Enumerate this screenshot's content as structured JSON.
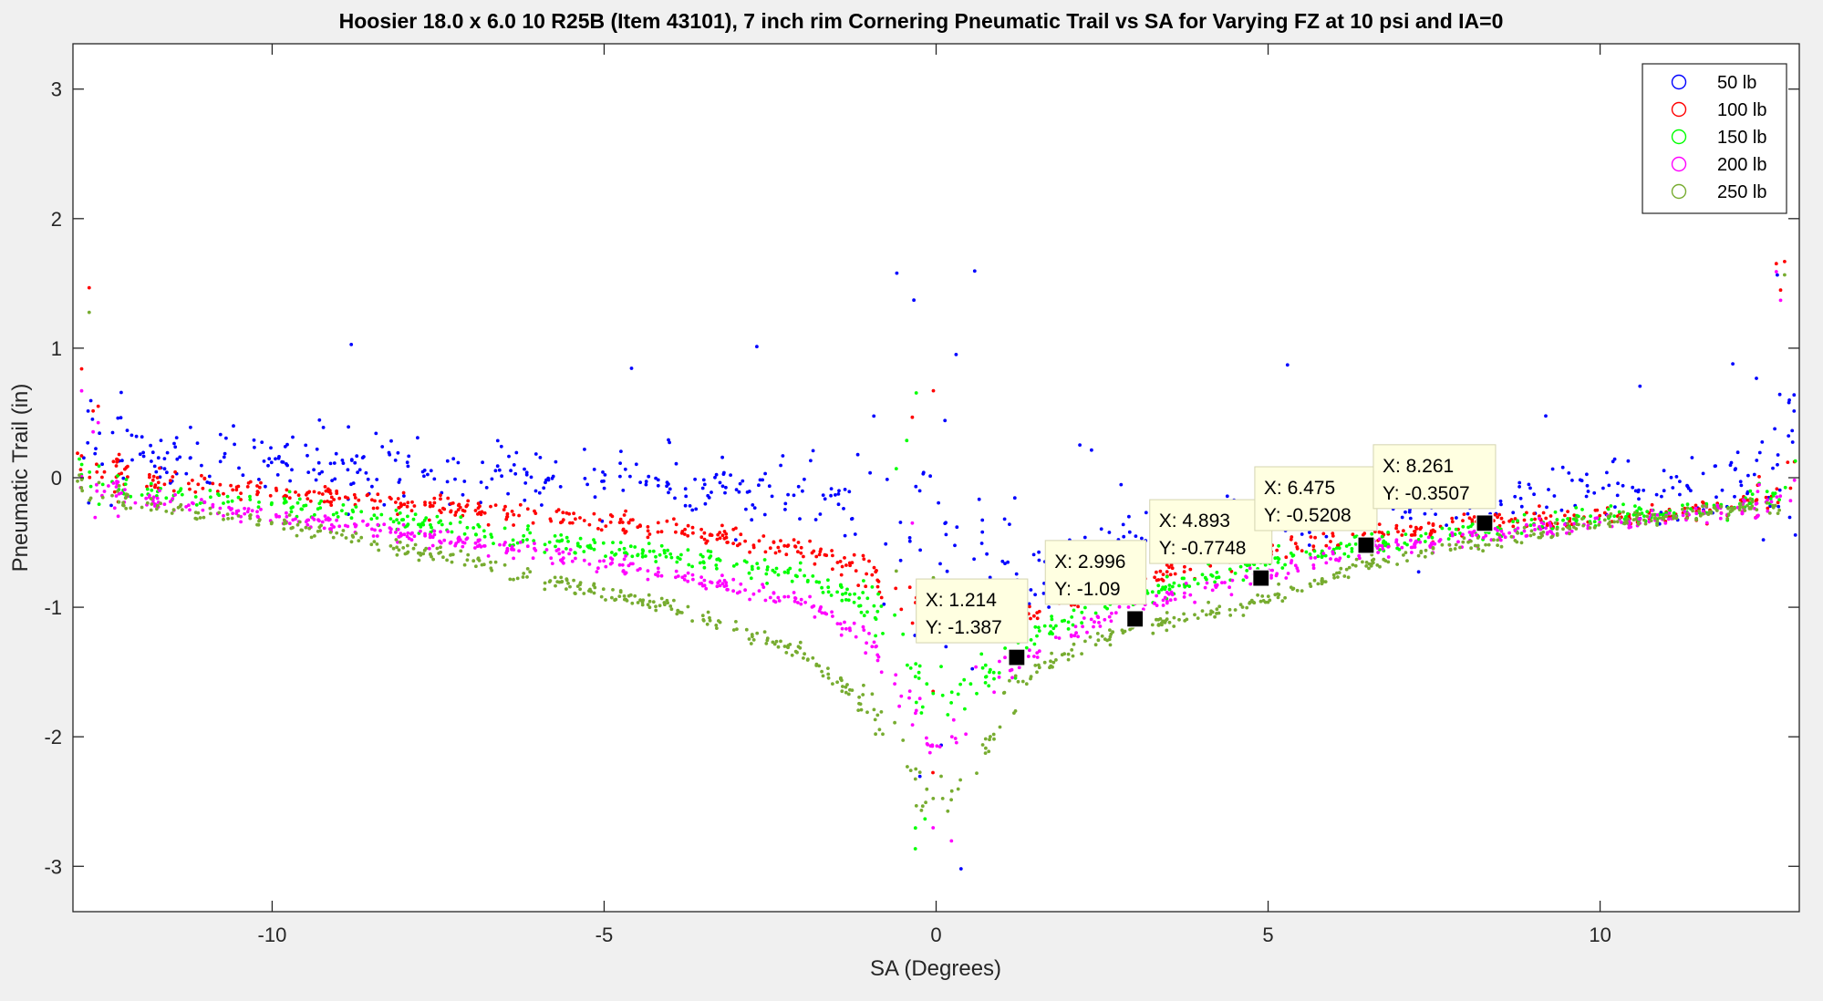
{
  "chart_data": {
    "type": "scatter",
    "title": "Hoosier 18.0 x 6.0 10 R25B (Item 43101), 7 inch rim Cornering Pneumatic Trail vs SA for Varying FZ at 10 psi and IA=0",
    "xlabel": "SA (Degrees)",
    "ylabel": "Pneumatic Trail (in)",
    "xlim": [
      -13,
      13
    ],
    "ylim": [
      -3.35,
      3.35
    ],
    "xticks": [
      -10,
      -5,
      0,
      5,
      10
    ],
    "yticks": [
      -3,
      -2,
      -1,
      0,
      1,
      2,
      3
    ],
    "legend_position": "top-right",
    "series": [
      {
        "name": "50 lb",
        "color": "#0000ff",
        "curve": {
          "x": [
            -13,
            -12.6,
            -12,
            -10,
            -7,
            -4,
            -2,
            -1,
            -0.5,
            0,
            0.5,
            1.2,
            2,
            3,
            4.9,
            6.5,
            8.3,
            10,
            12,
            12.6,
            13
          ],
          "y": [
            0.3,
            0.2,
            0.2,
            0.15,
            0.05,
            -0.05,
            -0.1,
            -0.2,
            -0.3,
            -0.4,
            -0.6,
            -0.8,
            -0.65,
            -0.45,
            -0.3,
            -0.2,
            -0.15,
            -0.1,
            -0.05,
            0.05,
            0.2
          ]
        }
      },
      {
        "name": "100 lb",
        "color": "#ff0000",
        "curve": {
          "x": [
            -13,
            -12.6,
            -12,
            -10,
            -7,
            -4,
            -2,
            -1,
            -0.5,
            0,
            0.5,
            1.2,
            2,
            3,
            4.9,
            6.5,
            8.3,
            10,
            12,
            12.6,
            13
          ],
          "y": [
            0.15,
            0.05,
            0.0,
            -0.1,
            -0.25,
            -0.4,
            -0.55,
            -0.7,
            -0.9,
            -1.1,
            -1.2,
            -1.1,
            -0.95,
            -0.8,
            -0.55,
            -0.45,
            -0.35,
            -0.3,
            -0.25,
            -0.1,
            0.1
          ]
        }
      },
      {
        "name": "150 lb",
        "color": "#00ff00",
        "curve": {
          "x": [
            -13,
            -12.6,
            -12,
            -10,
            -7,
            -4,
            -2,
            -1,
            -0.5,
            0,
            0.5,
            1.2,
            2,
            3,
            4.9,
            6.5,
            8.3,
            10,
            12,
            12.6,
            13
          ],
          "y": [
            0.05,
            -0.05,
            -0.1,
            -0.2,
            -0.4,
            -0.6,
            -0.75,
            -0.95,
            -1.3,
            -1.8,
            -1.6,
            -1.3,
            -1.1,
            -0.9,
            -0.65,
            -0.5,
            -0.4,
            -0.3,
            -0.25,
            -0.1,
            0.0
          ]
        }
      },
      {
        "name": "200 lb",
        "color": "#ff00ff",
        "curve": {
          "x": [
            -13,
            -12.6,
            -12,
            -10,
            -7,
            -4,
            -2,
            -1,
            -0.5,
            0,
            0.5,
            1.2,
            2,
            3,
            4.9,
            6.5,
            8.3,
            10,
            12,
            12.6,
            13
          ],
          "y": [
            0.0,
            -0.1,
            -0.15,
            -0.3,
            -0.5,
            -0.75,
            -0.95,
            -1.25,
            -1.6,
            -2.2,
            -1.9,
            -1.45,
            -1.2,
            -1.0,
            -0.75,
            -0.55,
            -0.45,
            -0.35,
            -0.25,
            -0.15,
            -0.05
          ]
        }
      },
      {
        "name": "250 lb",
        "color": "#77ac30",
        "curve": {
          "x": [
            -13,
            -12.6,
            -12,
            -10,
            -7,
            -4,
            -2,
            -1,
            -0.5,
            0,
            0.5,
            1.2,
            2,
            3,
            4.9,
            6.5,
            8.3,
            10,
            12,
            12.6,
            13
          ],
          "y": [
            -0.05,
            -0.15,
            -0.2,
            -0.35,
            -0.65,
            -1.0,
            -1.35,
            -1.75,
            -2.1,
            -2.6,
            -2.3,
            -1.6,
            -1.35,
            -1.15,
            -0.95,
            -0.65,
            -0.5,
            -0.35,
            -0.25,
            -0.2,
            -0.1
          ]
        }
      }
    ],
    "datatips": [
      {
        "x": 1.214,
        "y": -1.387,
        "x_text": "X: 1.214",
        "y_text": "Y: -1.387"
      },
      {
        "x": 2.996,
        "y": -1.09,
        "x_text": "X: 2.996",
        "y_text": "Y: -1.09"
      },
      {
        "x": 4.893,
        "y": -0.7748,
        "x_text": "X: 4.893",
        "y_text": "Y: -0.7748"
      },
      {
        "x": 6.475,
        "y": -0.5208,
        "x_text": "X: 6.475",
        "y_text": "Y: -0.5208"
      },
      {
        "x": 8.261,
        "y": -0.3507,
        "x_text": "X: 8.261",
        "y_text": "Y: -0.3507"
      }
    ]
  }
}
